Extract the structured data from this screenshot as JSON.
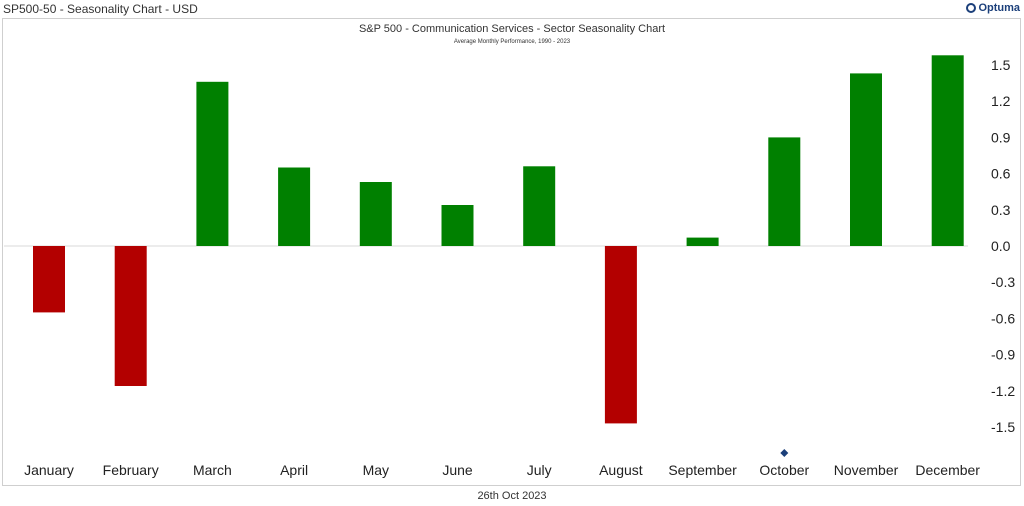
{
  "window_title": "SP500-50 - Seasonality Chart - USD",
  "logo_text": "Optuma",
  "footer_date": "26th Oct 2023",
  "colors": {
    "positive": "#008000",
    "negative": "#b30000",
    "marker": "#1b3f7a",
    "zero_line": "#d9d9d9"
  },
  "chart_data": {
    "type": "bar",
    "title": "S&P 500 - Communication Services - Sector Seasonality Chart",
    "subtitle": "Average Monthly Performance, 1990 - 2023",
    "categories": [
      "January",
      "February",
      "March",
      "April",
      "May",
      "June",
      "July",
      "August",
      "September",
      "October",
      "November",
      "December"
    ],
    "values": [
      -0.55,
      -1.16,
      1.36,
      0.65,
      0.53,
      0.34,
      0.66,
      -1.47,
      0.07,
      0.9,
      1.43,
      1.58
    ],
    "y_ticks": [
      "1.5",
      "1.2",
      "0.9",
      "0.6",
      "0.3",
      "0.0",
      "-0.3",
      "-0.6",
      "-0.9",
      "-1.2",
      "-1.5"
    ],
    "ylim": [
      -1.7,
      1.7
    ],
    "y_axis_position": "right",
    "grid": false,
    "current_month_marker": "October"
  }
}
